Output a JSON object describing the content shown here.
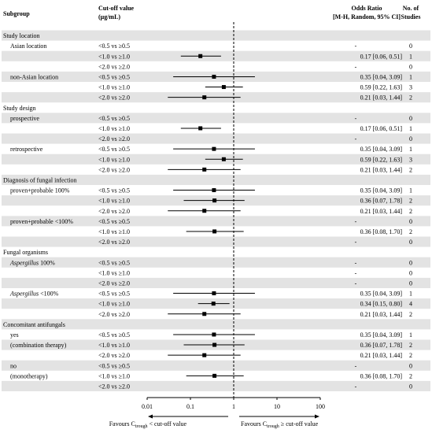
{
  "header": {
    "subgroup": "Subgroup",
    "cutoff_line1": "Cut-off value",
    "cutoff_line2": "(μg/mL)",
    "or_line1": "Odds Ratio",
    "or_line2": "[M-H, Random, 95% CI]",
    "studies_line1": "No. of",
    "studies_line2": "Studies"
  },
  "axis": {
    "ticks": [
      0.01,
      0.1,
      1,
      10,
      100
    ],
    "tick_labels": [
      "0.01",
      "0.1",
      "1",
      "10",
      "100"
    ],
    "favours_left_pre": "Favours C",
    "favours_left_sub": "trough",
    "favours_left_post": " < cut-off value",
    "favours_right_pre": "Favours C",
    "favours_right_sub": "trough",
    "favours_right_post": " ≥ cut-off value"
  },
  "chart_data": {
    "type": "forest",
    "scale": "log",
    "xlim": [
      0.01,
      100
    ],
    "reference_line": 1,
    "rows": [
      {
        "kind": "group",
        "label": "Study location"
      },
      {
        "kind": "data",
        "sub": "Asian location",
        "cut": "<0.5 vs ≥0.5",
        "or_text": "-",
        "n": "0"
      },
      {
        "kind": "data",
        "cut": "<1.0 vs ≥1.0",
        "or": 0.17,
        "lo": 0.06,
        "hi": 0.51,
        "or_text": "0.17 [0.06, 0.51]",
        "n": "1"
      },
      {
        "kind": "data",
        "cut": "<2.0 vs ≥2.0",
        "or_text": "-",
        "n": "0"
      },
      {
        "kind": "data",
        "sub": "non-Asian location",
        "cut": "<0.5 vs ≥0.5",
        "or": 0.35,
        "lo": 0.04,
        "hi": 3.09,
        "or_text": "0.35 [0.04, 3.09]",
        "n": "1"
      },
      {
        "kind": "data",
        "cut": "<1.0 vs ≥1.0",
        "or": 0.59,
        "lo": 0.22,
        "hi": 1.63,
        "or_text": "0.59 [0.22, 1.63]",
        "n": "3"
      },
      {
        "kind": "data",
        "cut": "<2.0 vs ≥2.0",
        "or": 0.21,
        "lo": 0.03,
        "hi": 1.44,
        "or_text": "0.21 [0.03, 1.44]",
        "n": "2"
      },
      {
        "kind": "group",
        "label": "Study design"
      },
      {
        "kind": "data",
        "sub": "prospective",
        "cut": "<0.5 vs ≥0.5",
        "or_text": "-",
        "n": "0"
      },
      {
        "kind": "data",
        "cut": "<1.0 vs ≥1.0",
        "or": 0.17,
        "lo": 0.06,
        "hi": 0.51,
        "or_text": "0.17 [0.06, 0.51]",
        "n": "1"
      },
      {
        "kind": "data",
        "cut": "<2.0 vs ≥2.0",
        "or_text": "-",
        "n": "0"
      },
      {
        "kind": "data",
        "sub": "retrospective",
        "cut": "<0.5 vs ≥0.5",
        "or": 0.35,
        "lo": 0.04,
        "hi": 3.09,
        "or_text": "0.35 [0.04, 3.09]",
        "n": "1"
      },
      {
        "kind": "data",
        "cut": "<1.0 vs ≥1.0",
        "or": 0.59,
        "lo": 0.22,
        "hi": 1.63,
        "or_text": "0.59 [0.22, 1.63]",
        "n": "3"
      },
      {
        "kind": "data",
        "cut": "<2.0 vs ≥2.0",
        "or": 0.21,
        "lo": 0.03,
        "hi": 1.44,
        "or_text": "0.21 [0.03, 1.44]",
        "n": "2"
      },
      {
        "kind": "group",
        "label": "Diagnosis of fungal infection"
      },
      {
        "kind": "data",
        "sub": "proven+probable 100%",
        "cut": "<0.5 vs ≥0.5",
        "or": 0.35,
        "lo": 0.04,
        "hi": 3.09,
        "or_text": "0.35 [0.04, 3.09]",
        "n": "1"
      },
      {
        "kind": "data",
        "cut": "<1.0 vs ≥1.0",
        "or": 0.36,
        "lo": 0.07,
        "hi": 1.78,
        "or_text": "0.36 [0.07, 1.78]",
        "n": "2"
      },
      {
        "kind": "data",
        "cut": "<2.0 vs ≥2.0",
        "or": 0.21,
        "lo": 0.03,
        "hi": 1.44,
        "or_text": "0.21 [0.03, 1.44]",
        "n": "2"
      },
      {
        "kind": "data",
        "sub": "proven+probable <100%",
        "cut": "<0.5 vs ≥0.5",
        "or_text": "-",
        "n": "0"
      },
      {
        "kind": "data",
        "cut": "<1.0 vs ≥1.0",
        "or": 0.36,
        "lo": 0.08,
        "hi": 1.7,
        "or_text": "0.36 [0.08, 1.70]",
        "n": "2"
      },
      {
        "kind": "data",
        "cut": "<2.0 vs ≥2.0",
        "or_text": "-",
        "n": "0"
      },
      {
        "kind": "group",
        "label": "Fungal organisms"
      },
      {
        "kind": "data",
        "sub_italic": "Aspergillus",
        "sub_rest": " 100%",
        "cut": "<0.5 vs ≥0.5",
        "or_text": "-",
        "n": "0"
      },
      {
        "kind": "data",
        "cut": "<1.0 vs ≥1.0",
        "or_text": "-",
        "n": "0"
      },
      {
        "kind": "data",
        "cut": "<2.0 vs ≥2.0",
        "or_text": "-",
        "n": "0"
      },
      {
        "kind": "data",
        "sub_italic": "Aspergillus",
        "sub_rest": " <100%",
        "cut": "<0.5 vs ≥0.5",
        "or": 0.35,
        "lo": 0.04,
        "hi": 3.09,
        "or_text": "0.35 [0.04, 3.09]",
        "n": "1"
      },
      {
        "kind": "data",
        "cut": "<1.0 vs ≥1.0",
        "or": 0.34,
        "lo": 0.15,
        "hi": 0.8,
        "or_text": "0.34 [0.15, 0.80]",
        "n": "4"
      },
      {
        "kind": "data",
        "cut": "<2.0 vs ≥2.0",
        "or": 0.21,
        "lo": 0.03,
        "hi": 1.44,
        "or_text": "0.21 [0.03, 1.44]",
        "n": "2"
      },
      {
        "kind": "group",
        "label": "Concomitant antifungals"
      },
      {
        "kind": "data",
        "sub": "yes",
        "cut": "<0.5 vs ≥0.5",
        "or": 0.35,
        "lo": 0.04,
        "hi": 3.09,
        "or_text": "0.35 [0.04, 3.09]",
        "n": "1"
      },
      {
        "kind": "data",
        "sub": "(combination therapy)",
        "cut": "<1.0 vs ≥1.0",
        "or": 0.36,
        "lo": 0.07,
        "hi": 1.78,
        "or_text": "0.36 [0.07, 1.78]",
        "n": "2"
      },
      {
        "kind": "data",
        "cut": "<2.0 vs ≥2.0",
        "or": 0.21,
        "lo": 0.03,
        "hi": 1.44,
        "or_text": "0.21 [0.03, 1.44]",
        "n": "2"
      },
      {
        "kind": "data",
        "sub": "no",
        "cut": "<0.5 vs ≥0.5",
        "or_text": "-",
        "n": "0"
      },
      {
        "kind": "data",
        "sub": "(monotherapy)",
        "cut": "<1.0 vs ≥1.0",
        "or": 0.36,
        "lo": 0.08,
        "hi": 1.7,
        "or_text": "0.36 [0.08, 1.70]",
        "n": "2"
      },
      {
        "kind": "data",
        "cut": "<2.0 vs ≥2.0",
        "or_text": "-",
        "n": "0"
      }
    ]
  },
  "colors": {
    "band": "#e3e3e3",
    "marker": "#000000",
    "reference_line": "#000000"
  }
}
